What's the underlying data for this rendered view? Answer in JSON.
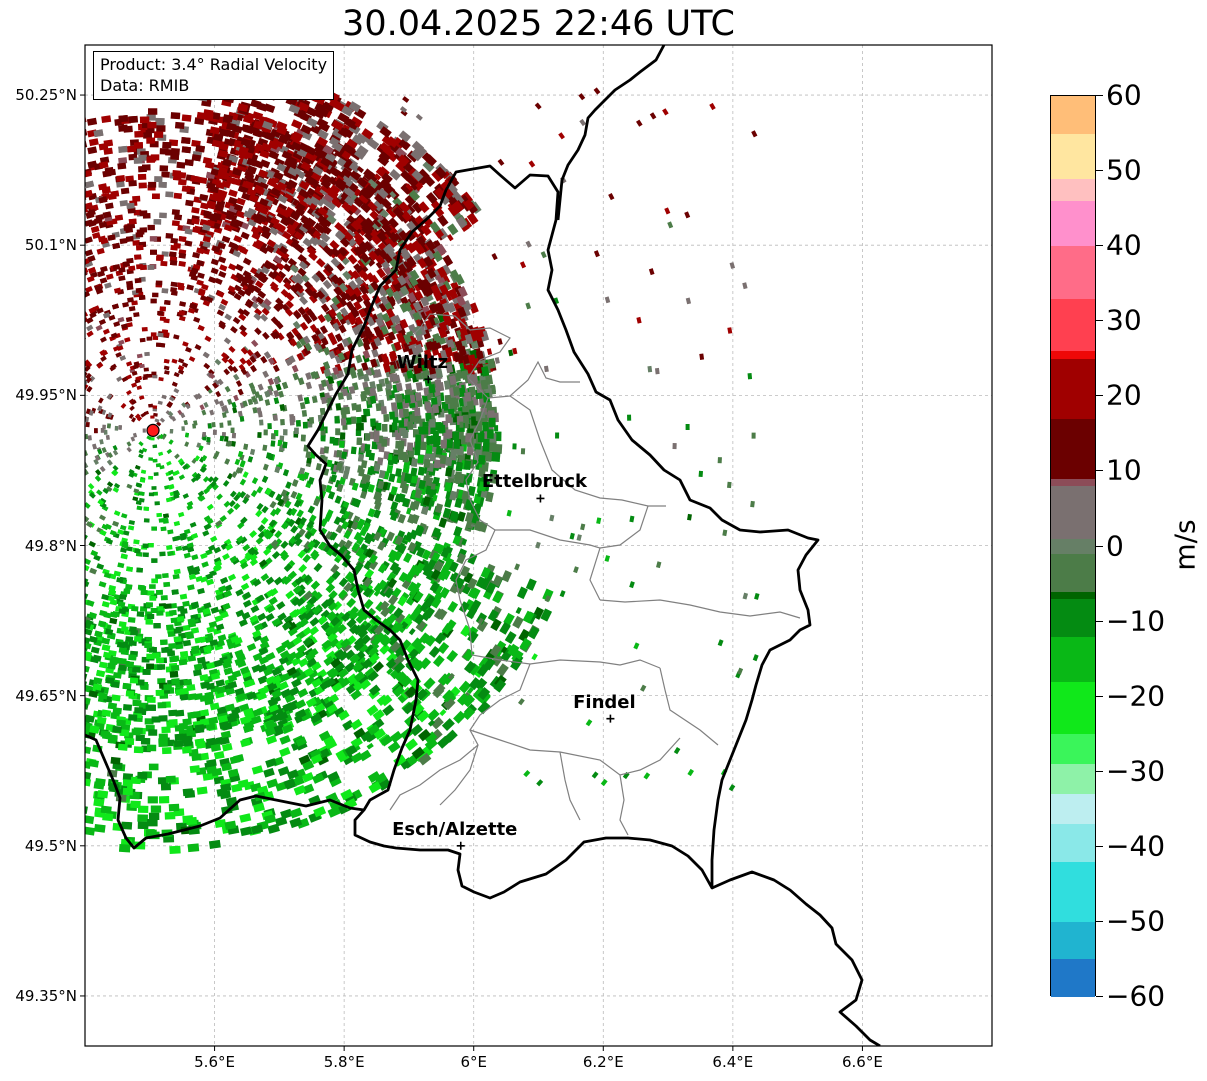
{
  "title": "30.04.2025 22:46 UTC",
  "info": {
    "product": "Product: 3.4° Radial Velocity",
    "source": "Data: RMIB"
  },
  "map": {
    "extent": {
      "lon_min": 5.4,
      "lon_max": 6.8,
      "lat_min": 49.3,
      "lat_max": 50.3
    },
    "lat_ticks": [
      {
        "value": 50.25,
        "label": "50.25°N"
      },
      {
        "value": 50.1,
        "label": "50.1°N"
      },
      {
        "value": 49.95,
        "label": "49.95°N"
      },
      {
        "value": 49.8,
        "label": "49.8°N"
      },
      {
        "value": 49.65,
        "label": "49.65°N"
      },
      {
        "value": 49.5,
        "label": "49.5°N"
      },
      {
        "value": 49.35,
        "label": "49.35°N"
      }
    ],
    "lon_ticks": [
      {
        "value": 5.6,
        "label": "5.6°E"
      },
      {
        "value": 5.8,
        "label": "5.8°E"
      },
      {
        "value": 6.0,
        "label": "6°E"
      },
      {
        "value": 6.2,
        "label": "6.2°E"
      },
      {
        "value": 6.4,
        "label": "6.4°E"
      },
      {
        "value": 6.6,
        "label": "6.6°E"
      }
    ],
    "radar_site": {
      "lon": 5.505,
      "lat": 49.915
    },
    "cities": [
      {
        "name": "Wiltz",
        "lon": 5.93,
        "lat": 49.966
      },
      {
        "name": "Ettelbruck",
        "lon": 6.103,
        "lat": 49.847
      },
      {
        "name": "Findel",
        "lon": 6.211,
        "lat": 49.627
      },
      {
        "name": "Esch/Alzette",
        "lon": 5.98,
        "lat": 49.5
      }
    ],
    "colors": {
      "border": "#000000",
      "admin": "#808080",
      "grid": "#bbbbbb",
      "radar_site": "#ff1a1a"
    }
  },
  "colorbar": {
    "unit": "m/s",
    "min": -60,
    "max": 60,
    "ticks": [
      {
        "value": 60,
        "label": "60"
      },
      {
        "value": 50,
        "label": "50"
      },
      {
        "value": 40,
        "label": "40"
      },
      {
        "value": 30,
        "label": "30"
      },
      {
        "value": 20,
        "label": "20"
      },
      {
        "value": 10,
        "label": "10"
      },
      {
        "value": 0,
        "label": "0"
      },
      {
        "value": -10,
        "label": "−10"
      },
      {
        "value": -20,
        "label": "−20"
      },
      {
        "value": -30,
        "label": "−30"
      },
      {
        "value": -40,
        "label": "−40"
      },
      {
        "value": -50,
        "label": "−50"
      },
      {
        "value": -60,
        "label": "−60"
      }
    ],
    "stops": [
      {
        "value": -60,
        "color": "#1f78c8"
      },
      {
        "value": -55,
        "color": "#20b4d0"
      },
      {
        "value": -50,
        "color": "#30dede"
      },
      {
        "value": -42,
        "color": "#8ae8e8"
      },
      {
        "value": -37,
        "color": "#bdeef0"
      },
      {
        "value": -33,
        "color": "#8ef2a8"
      },
      {
        "value": -29,
        "color": "#3af55a"
      },
      {
        "value": -25,
        "color": "#10e81a"
      },
      {
        "value": -18,
        "color": "#09b816"
      },
      {
        "value": -12,
        "color": "#048b12"
      },
      {
        "value": -7,
        "color": "#006400"
      },
      {
        "value": -6,
        "color": "#4c7c48"
      },
      {
        "value": -1,
        "color": "#667f66"
      },
      {
        "value": 1,
        "color": "#7a7070"
      },
      {
        "value": 8,
        "color": "#8c4c58"
      },
      {
        "value": 9,
        "color": "#6b0000"
      },
      {
        "value": 17,
        "color": "#a00000"
      },
      {
        "value": 25,
        "color": "#ee0808"
      },
      {
        "value": 26,
        "color": "#ff4050"
      },
      {
        "value": 33,
        "color": "#ff6c88"
      },
      {
        "value": 40,
        "color": "#ff90cc"
      },
      {
        "value": 46,
        "color": "#ffc0c0"
      },
      {
        "value": 49,
        "color": "#ffe6a0"
      },
      {
        "value": 55,
        "color": "#ffbe78"
      },
      {
        "value": 60,
        "color": "#ff9a50"
      }
    ]
  }
}
